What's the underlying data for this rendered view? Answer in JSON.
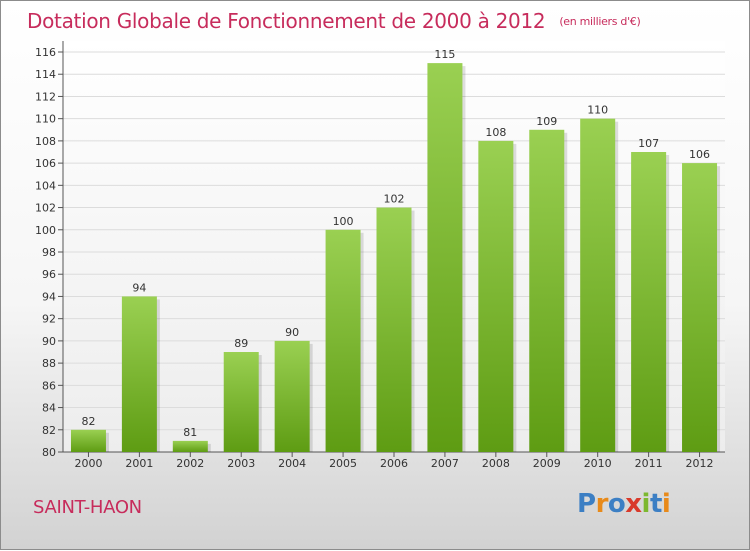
{
  "title": "Dotation Globale de Fonctionnement de 2000 à 2012",
  "unit_note": "(en milliers d'€)",
  "commune": "SAINT-HAON",
  "logo": {
    "letters": [
      "P",
      "r",
      "o",
      "x",
      "i",
      "t",
      "i"
    ],
    "colors": [
      "#3c7fc4",
      "#e88a1a",
      "#3c7fc4",
      "#d93a2b",
      "#7cb82f",
      "#3c7fc4",
      "#e88a1a"
    ]
  },
  "colors": {
    "bar_top": "#9ad052",
    "bar_bottom": "#5e9c13",
    "title": "#c72c5c"
  },
  "chart_data": {
    "type": "bar",
    "categories": [
      "2000",
      "2001",
      "2002",
      "2003",
      "2004",
      "2005",
      "2006",
      "2007",
      "2008",
      "2009",
      "2010",
      "2011",
      "2012"
    ],
    "values": [
      82,
      94,
      81,
      89,
      90,
      100,
      102,
      115,
      108,
      109,
      110,
      107,
      106
    ],
    "data_labels": [
      "82",
      "94",
      "81",
      "89",
      "90",
      "100",
      "102",
      "115",
      "108",
      "109",
      "110",
      "107",
      "106"
    ],
    "yticks": [
      "80",
      "82",
      "84",
      "86",
      "88",
      "90",
      "92",
      "94",
      "96",
      "98",
      "100",
      "102",
      "104",
      "106",
      "108",
      "110",
      "112",
      "114",
      "116"
    ],
    "ylim": [
      80,
      116
    ],
    "ytick_step": 2,
    "grid": true,
    "legend": "none"
  }
}
